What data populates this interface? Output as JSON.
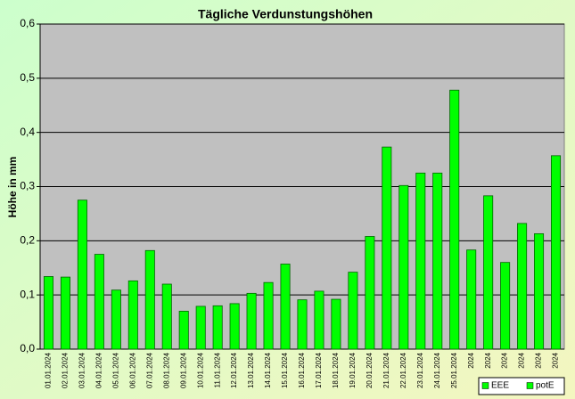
{
  "chart_data": {
    "type": "bar",
    "title": "Tägliche Verdunstungshöhen",
    "y_label": "Höhe in mm",
    "categories": [
      "01.01.2024",
      "02.01.2024",
      "03.01.2024",
      "04.01.2024",
      "05.01.2024",
      "06.01.2024",
      "07.01.2024",
      "08.01.2024",
      "09.01.2024",
      "10.01.2024",
      "11.01.2024",
      "12.01.2024",
      "13.01.2024",
      "14.01.2024",
      "15.01.2024",
      "16.01.2024",
      "17.01.2024",
      "18.01.2024",
      "19.01.2024",
      "20.01.2024",
      "21.01.2024",
      "22.01.2024",
      "23.01.2024",
      "24.01.2024",
      "25.01.2024",
      "2024",
      "2024",
      "2024",
      "2024",
      "2024",
      "2024"
    ],
    "values": [
      0.134,
      0.133,
      0.275,
      0.175,
      0.109,
      0.126,
      0.182,
      0.12,
      0.07,
      0.079,
      0.08,
      0.084,
      0.103,
      0.123,
      0.157,
      0.091,
      0.107,
      0.092,
      0.142,
      0.208,
      0.373,
      0.302,
      0.325,
      0.325,
      0.478,
      0.183,
      0.283,
      0.16,
      0.232,
      0.213,
      0.357
    ],
    "color": "#00ff00",
    "ylim": [
      0,
      0.6
    ],
    "yticks": [
      {
        "value": 0,
        "label": "0,0"
      },
      {
        "value": 0.1,
        "label": "0,1"
      },
      {
        "value": 0.2,
        "label": "0,2"
      },
      {
        "value": 0.3,
        "label": "0,3"
      },
      {
        "value": 0.4,
        "label": "0,4"
      },
      {
        "value": 0.5,
        "label": "0,5"
      },
      {
        "value": 0.6,
        "label": "0,6"
      }
    ],
    "grid": true,
    "legend": [
      {
        "name": "EEE",
        "color": "#00ff00"
      },
      {
        "name": "potE",
        "color": "#00ff00"
      }
    ]
  }
}
